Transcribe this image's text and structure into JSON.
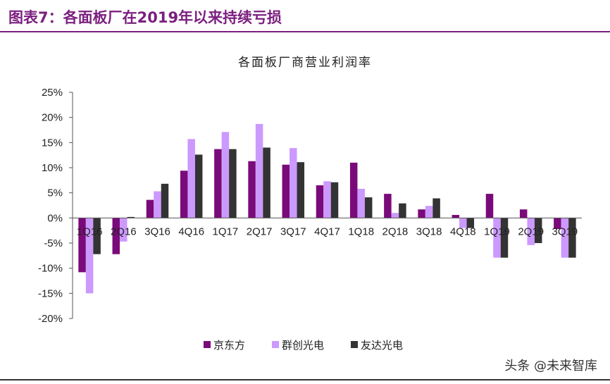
{
  "header": {
    "title": "图表7：各面板厂在2019年以来持续亏损"
  },
  "watermark": "头条 @未来智库",
  "colors": {
    "boe": "#7a0a7a",
    "innolux": "#cc99ff",
    "auo": "#333333",
    "header": "#7b1f7f"
  },
  "chart_data": {
    "type": "bar",
    "title": "各面板厂商营业利润率",
    "categories": [
      "1Q16",
      "2Q16",
      "3Q16",
      "4Q16",
      "1Q17",
      "2Q17",
      "3Q17",
      "4Q17",
      "1Q18",
      "2Q18",
      "3Q18",
      "4Q18",
      "1Q19",
      "2Q19",
      "3Q19"
    ],
    "series": [
      {
        "name": "京东方",
        "color": "#7a0a7a",
        "values": [
          -10.8,
          -7.2,
          3.6,
          9.4,
          13.7,
          11.3,
          10.6,
          6.5,
          11.0,
          4.8,
          1.7,
          0.6,
          4.8,
          1.7,
          -2.2
        ]
      },
      {
        "name": "群创光电",
        "color": "#cc99ff",
        "values": [
          -15.0,
          -4.7,
          5.3,
          15.7,
          17.1,
          18.7,
          13.9,
          7.3,
          5.8,
          1.0,
          2.4,
          -2.0,
          -7.9,
          -5.4,
          -7.9
        ]
      },
      {
        "name": "友达光电",
        "color": "#333333",
        "values": [
          -7.2,
          0.2,
          6.8,
          12.6,
          13.7,
          14.0,
          11.1,
          7.1,
          4.1,
          2.9,
          3.9,
          -2.0,
          -7.9,
          -5.0,
          -7.9
        ]
      }
    ],
    "yticks": [
      "25%",
      "20%",
      "15%",
      "10%",
      "5%",
      "0%",
      "-5%",
      "-10%",
      "-15%",
      "-20%"
    ],
    "ylim": [
      -20,
      25
    ],
    "grid": false,
    "legend_position": "bottom-center",
    "xlabel": "",
    "ylabel": ""
  }
}
